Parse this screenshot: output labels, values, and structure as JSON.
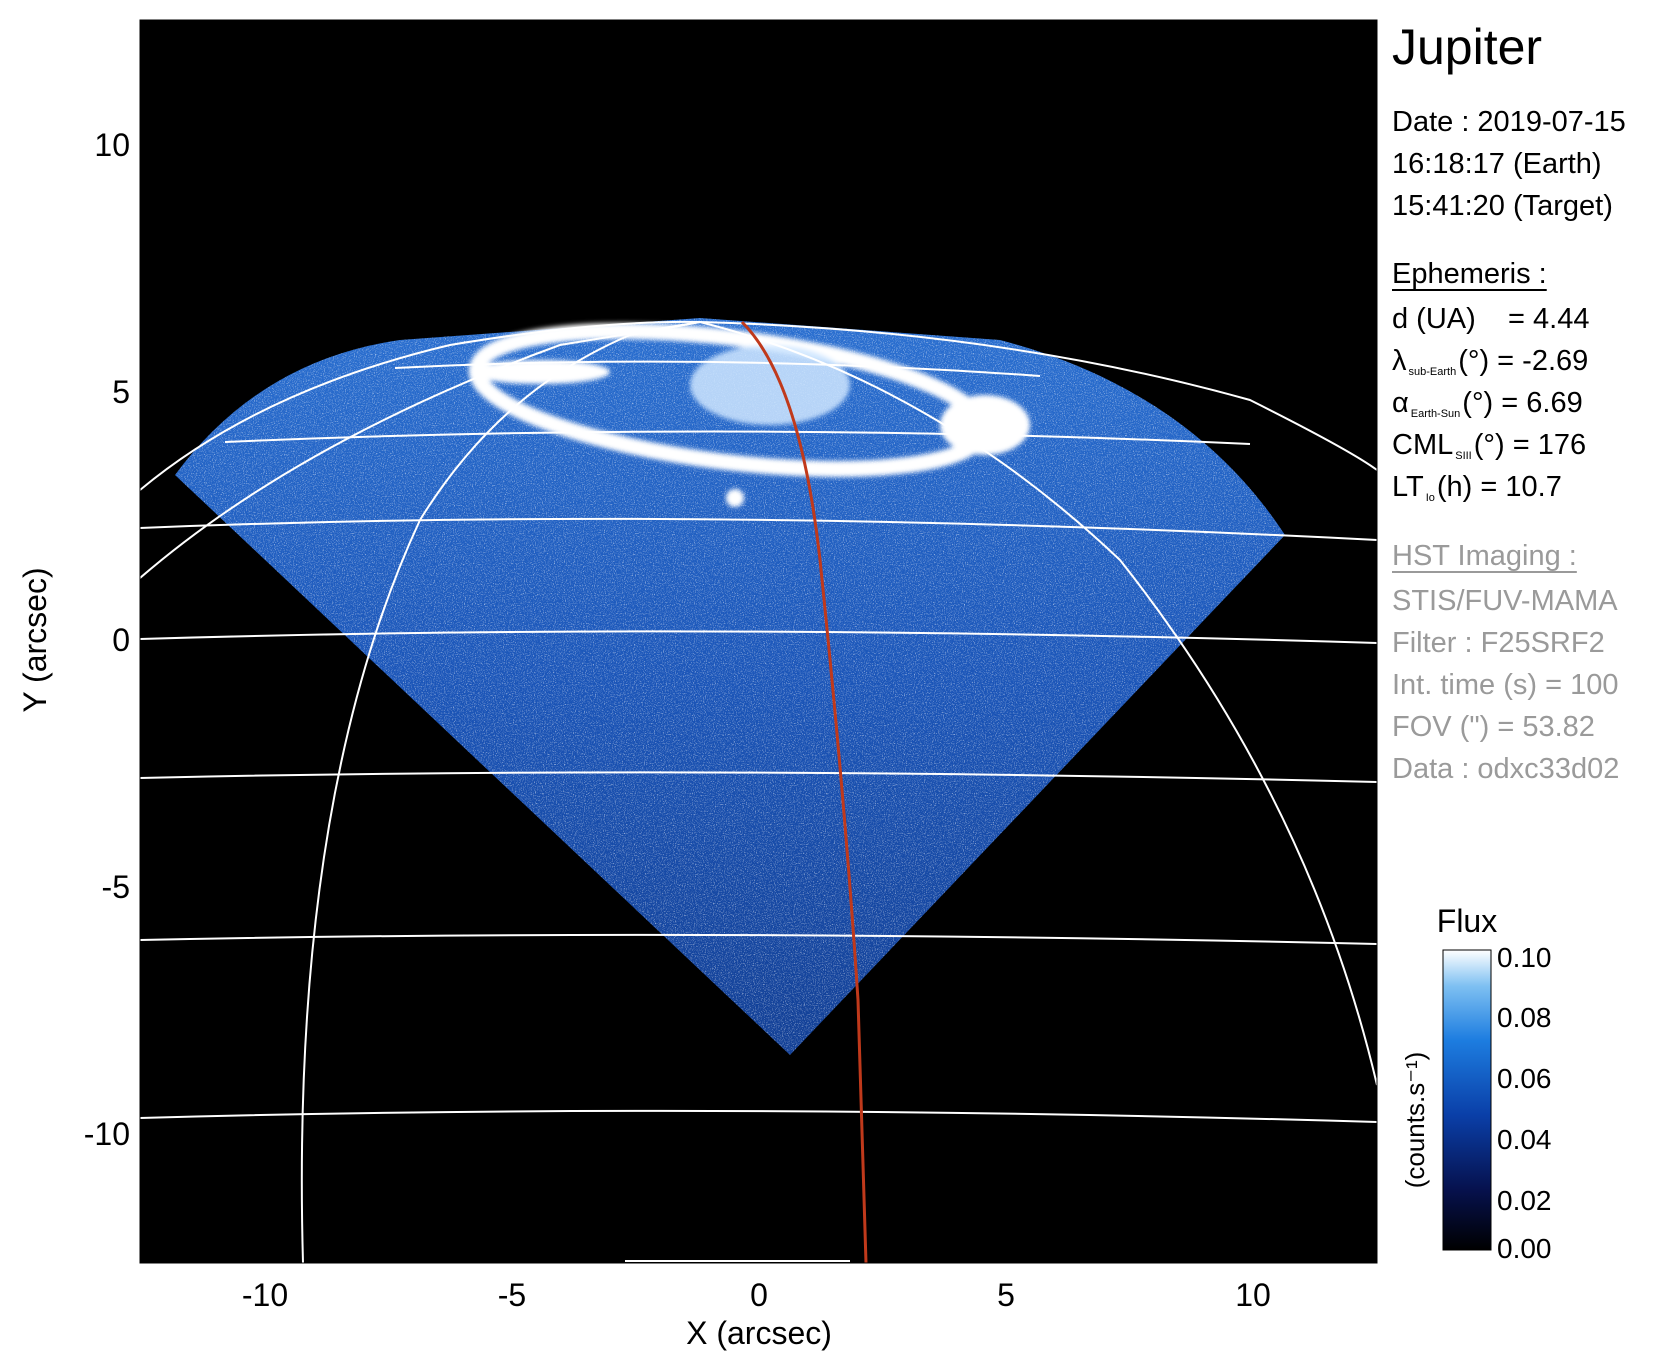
{
  "plot": {
    "xlabel": "X (arcsec)",
    "ylabel": "Y (arcsec)",
    "xlim": [
      -12.5,
      12.5
    ],
    "ylim": [
      -12.5,
      12.5
    ],
    "xticks": [
      "-10",
      "-5",
      "0",
      "5",
      "10"
    ],
    "yticks": [
      "10",
      "5",
      "0",
      "-5",
      "-10"
    ],
    "background": "#000000",
    "grid_color": "#ffffff",
    "meridian_color": "#c0391b"
  },
  "info": {
    "title": "Jupiter",
    "date": "Date : 2019-07-15",
    "time_earth": "16:18:17 (Earth)",
    "time_target": "15:41:20 (Target)",
    "ephemeris_header": "Ephemeris :",
    "distance": "d (UA)    = 4.44",
    "lat_symbol": "λ",
    "lat_sub": "sub-Earth",
    "lat_rest": "(°) = -2.69",
    "phase_symbol": "α",
    "phase_sub": "Earth-Sun",
    "phase_rest": "(°) = 6.69",
    "cml_symbol": "CML",
    "cml_sub": "SIII",
    "cml_rest": "(°) = 176",
    "lt_symbol": "LT",
    "lt_sub": "Io",
    "lt_rest": "(h) = 10.7",
    "hst_header": "HST Imaging :",
    "instrument": "STIS/FUV-MAMA",
    "filter": "Filter : F25SRF2",
    "int_time": "Int. time (s) = 100",
    "fov": "FOV (\") = 53.82",
    "data": "Data : odxc33d02"
  },
  "colorbar": {
    "title": "Flux",
    "label": "(counts.s⁻¹)",
    "ticks": [
      "0.10",
      "0.08",
      "0.06",
      "0.04",
      "0.02",
      "0.00"
    ],
    "range": [
      0.0,
      0.1
    ],
    "colors": [
      "#000000",
      "#06114d",
      "#0a3fa8",
      "#1d7de0",
      "#7ec0f2",
      "#ffffff"
    ]
  }
}
